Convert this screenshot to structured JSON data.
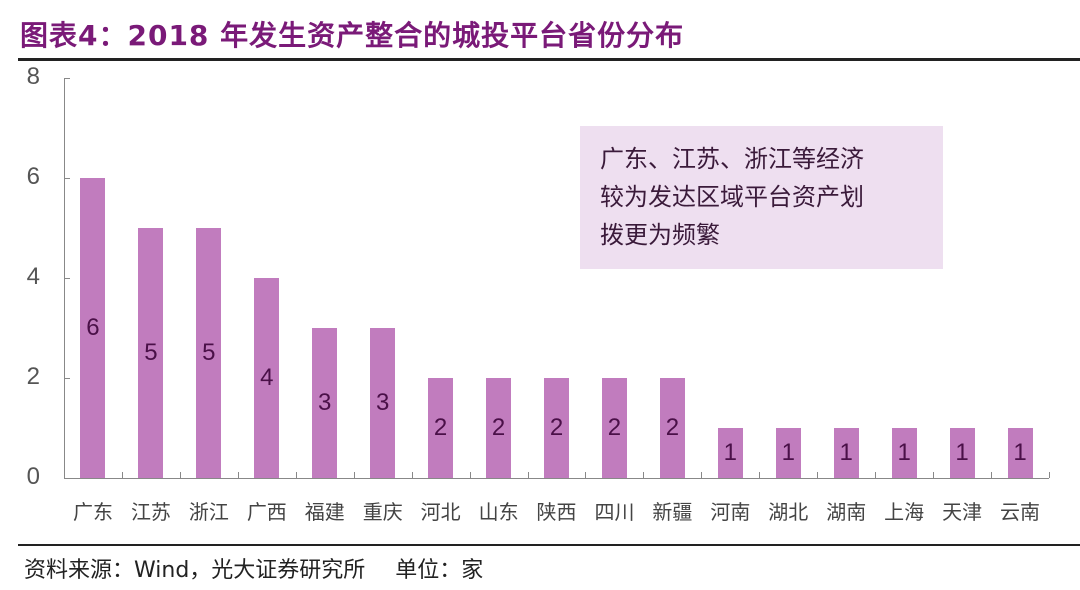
{
  "title": "图表4：2018 年发生资产整合的城投平台省份分布",
  "source": "资料来源：Wind，光大证券研究所",
  "unit": "单位：家",
  "annotation": {
    "lines": [
      "广东、江苏、浙江等经济",
      "较为发达区域平台资产划",
      "拨更为频繁"
    ]
  },
  "colors": {
    "bar": "#c17cbe",
    "title": "#7a1a78",
    "annotation_bg": "#eedff0",
    "bar_label": "#4a1048"
  },
  "yaxis": {
    "ticks": [
      "0",
      "2",
      "4",
      "6",
      "8"
    ]
  },
  "chart_data": {
    "type": "bar",
    "title": "2018 年发生资产整合的城投平台省份分布",
    "xlabel": "",
    "ylabel": "",
    "ylim": [
      0,
      8
    ],
    "yticks": [
      0,
      2,
      4,
      6,
      8
    ],
    "grid": false,
    "legend": null,
    "unit": "家",
    "categories": [
      "广东",
      "江苏",
      "浙江",
      "广西",
      "福建",
      "重庆",
      "河北",
      "山东",
      "陕西",
      "四川",
      "新疆",
      "河南",
      "湖北",
      "湖南",
      "上海",
      "天津",
      "云南"
    ],
    "values": [
      6,
      5,
      5,
      4,
      3,
      3,
      2,
      2,
      2,
      2,
      2,
      1,
      1,
      1,
      1,
      1,
      1
    ],
    "data_labels": [
      "6",
      "5",
      "5",
      "4",
      "3",
      "3",
      "2",
      "2",
      "2",
      "2",
      "2",
      "1",
      "1",
      "1",
      "1",
      "1",
      "1"
    ],
    "annotations": [
      "广东、江苏、浙江等经济较为发达区域平台资产划拨更为频繁"
    ]
  }
}
